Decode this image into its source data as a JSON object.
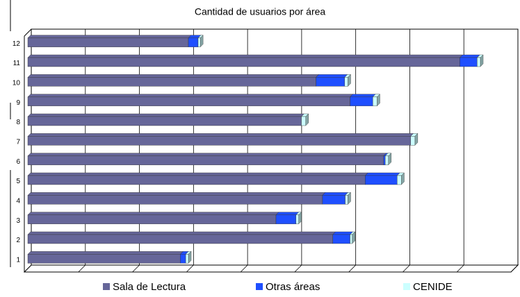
{
  "chart_data": {
    "type": "stacked-bar-horizontal",
    "title": "Cantidad de usuarios por área",
    "categories": [
      "1",
      "2",
      "3",
      "4",
      "5",
      "6",
      "7",
      "8",
      "9",
      "10",
      "11",
      "12"
    ],
    "series": [
      {
        "name": "Sala de Lectura",
        "color": "#666699",
        "values": [
          282,
          564,
          459,
          545,
          624,
          658,
          708,
          506,
          596,
          533,
          799,
          297
        ]
      },
      {
        "name": "Otras áreas",
        "color": "#1f4fff",
        "values": [
          10,
          32,
          37,
          42,
          59,
          3,
          0,
          0,
          42,
          53,
          32,
          18
        ]
      },
      {
        "name": "CENIDE",
        "color": "#ccffff",
        "values": [
          5,
          4,
          5,
          5,
          8,
          6,
          8,
          8,
          8,
          6,
          6,
          4
        ]
      }
    ],
    "xlim": [
      0,
      900
    ],
    "xticks": [
      0,
      100,
      200,
      300,
      400,
      500,
      600,
      700,
      800,
      900
    ],
    "grid": true,
    "legend": "bottom"
  }
}
